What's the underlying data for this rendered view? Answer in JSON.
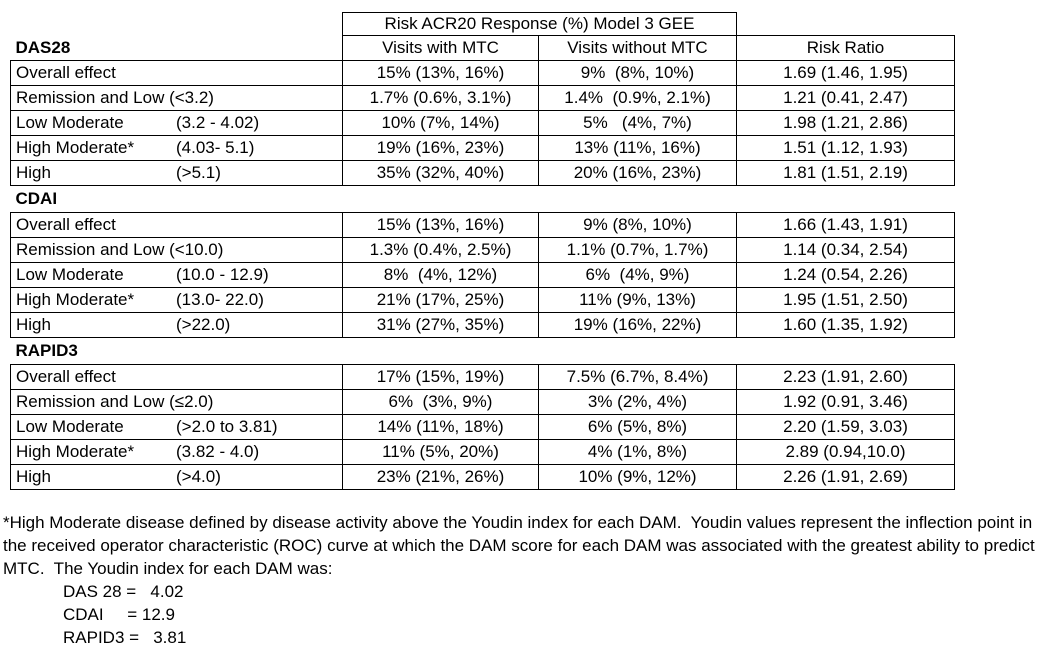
{
  "table": {
    "top_header": "Risk ACR20 Response (%) Model 3 GEE",
    "columns": {
      "with_mtc": "Visits with MTC",
      "without_mtc": "Visits without MTC",
      "risk_ratio": "Risk Ratio"
    },
    "sections": [
      {
        "name": "DAS28",
        "rows": [
          {
            "label": "Overall effect",
            "range": "",
            "with_mtc": "15% (13%, 16%)",
            "without_mtc": "9%  (8%, 10%)",
            "risk_ratio": "1.69 (1.46, 1.95)"
          },
          {
            "label": "Remission and Low (<3.2)",
            "range": "",
            "with_mtc": "1.7% (0.6%, 3.1%)",
            "without_mtc": "1.4%  (0.9%, 2.1%)",
            "risk_ratio": "1.21 (0.41, 2.47)"
          },
          {
            "label": "Low Moderate",
            "range": "(3.2 - 4.02)",
            "with_mtc": "10% (7%, 14%)",
            "without_mtc": "5%   (4%, 7%)",
            "risk_ratio": "1.98 (1.21, 2.86)"
          },
          {
            "label": "High Moderate*",
            "range": "(4.03- 5.1)",
            "with_mtc": "19% (16%, 23%)",
            "without_mtc": "13% (11%, 16%)",
            "risk_ratio": "1.51 (1.12, 1.93)"
          },
          {
            "label": "High",
            "range": "(>5.1)",
            "with_mtc": "35% (32%, 40%)",
            "without_mtc": "20% (16%, 23%)",
            "risk_ratio": "1.81 (1.51, 2.19)"
          }
        ]
      },
      {
        "name": "CDAI",
        "rows": [
          {
            "label": "Overall effect",
            "range": "",
            "with_mtc": "15% (13%, 16%)",
            "without_mtc": "9% (8%, 10%)",
            "risk_ratio": "1.66 (1.43, 1.91)"
          },
          {
            "label": "Remission and Low (<10.0)",
            "range": "",
            "with_mtc": "1.3% (0.4%, 2.5%)",
            "without_mtc": "1.1% (0.7%, 1.7%)",
            "risk_ratio": "1.14 (0.34, 2.54)"
          },
          {
            "label": "Low Moderate",
            "range": "(10.0 - 12.9)",
            "with_mtc": "8%  (4%, 12%)",
            "without_mtc": "6%  (4%, 9%)",
            "risk_ratio": "1.24 (0.54, 2.26)"
          },
          {
            "label": "High Moderate*",
            "range": "(13.0- 22.0)",
            "with_mtc": "21% (17%, 25%)",
            "without_mtc": "11% (9%, 13%)",
            "risk_ratio": "1.95 (1.51, 2.50)"
          },
          {
            "label": "High",
            "range": "(>22.0)",
            "with_mtc": "31% (27%, 35%)",
            "without_mtc": "19% (16%, 22%)",
            "risk_ratio": "1.60 (1.35, 1.92)"
          }
        ]
      },
      {
        "name": "RAPID3",
        "rows": [
          {
            "label": "Overall effect",
            "range": "",
            "with_mtc": "17% (15%, 19%)",
            "without_mtc": "7.5% (6.7%, 8.4%)",
            "risk_ratio": "2.23 (1.91, 2.60)"
          },
          {
            "label": "Remission and Low (≤2.0)",
            "range": "",
            "with_mtc": "6%  (3%, 9%)",
            "without_mtc": "3% (2%, 4%)",
            "risk_ratio": "1.92 (0.91, 3.46)"
          },
          {
            "label": "Low Moderate",
            "range": "(>2.0 to 3.81)",
            "with_mtc": "14% (11%, 18%)",
            "without_mtc": "6% (5%, 8%)",
            "risk_ratio": "2.20 (1.59, 3.03)"
          },
          {
            "label": "High Moderate*",
            "range": "(3.82 - 4.0)",
            "with_mtc": "11% (5%, 20%)",
            "without_mtc": "4% (1%, 8%)",
            "risk_ratio": "2.89 (0.94,10.0)"
          },
          {
            "label": "High",
            "range": "(>4.0)",
            "with_mtc": "23% (21%, 26%)",
            "without_mtc": "10% (9%, 12%)",
            "risk_ratio": "2.26 (1.91, 2.69)"
          }
        ]
      }
    ]
  },
  "footnote": {
    "paragraph": "*High Moderate disease defined by disease activity above the Youdin index for each DAM.  Youdin values represent the inflection point in the received operator characteristic (ROC) curve at which the DAM score for each DAM was associated with the greatest ability to predict MTC.  The Youdin index for each DAM was:",
    "youdin_values": [
      "DAS 28 =   4.02",
      "CDAI     = 12.9",
      "RAPID3 =   3.81"
    ]
  },
  "colors": {
    "text": "#000000",
    "border": "#000000",
    "background": "#ffffff"
  }
}
